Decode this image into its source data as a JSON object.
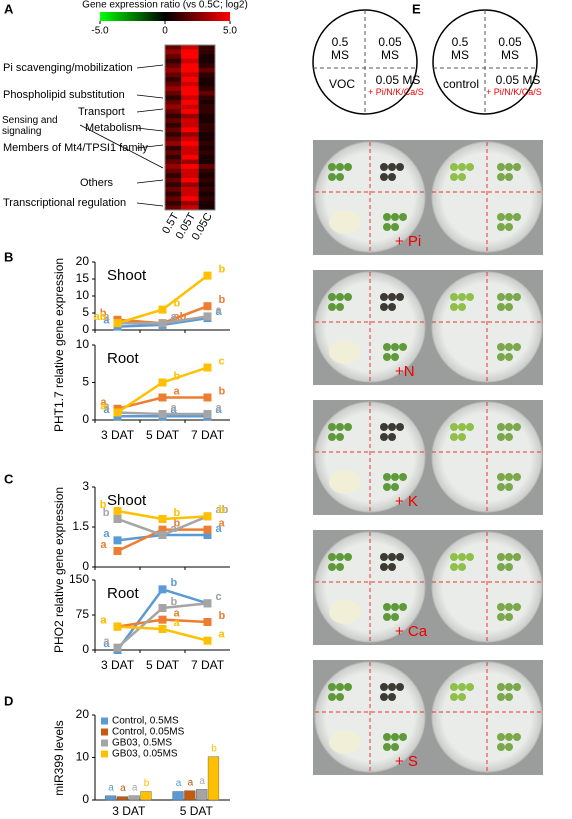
{
  "panel_labels": [
    "A",
    "B",
    "C",
    "D",
    "E"
  ],
  "chart_data": [
    {
      "type": "heatmap",
      "title": "Gene expression ratio (vs 0.5C; log2)",
      "clim": [
        -5,
        5
      ],
      "cticks": [
        {
          "value": -5,
          "label": "-5.0"
        },
        0,
        {
          "value": 5,
          "label": "5.0"
        }
      ],
      "categories": [
        "0.5T",
        "0.05T",
        "0.05C"
      ],
      "row_groups": [
        "Pi scavenging/mobilization",
        "Phospholipid substitution",
        "Transport",
        "Metabolism",
        "Members of Mt4/TPSI1 family",
        "Sensing and signaling",
        "Others",
        "Transcriptional regulation"
      ],
      "values": [
        [
          2,
          4,
          1
        ],
        [
          3,
          5,
          1
        ],
        [
          2,
          5,
          0.5
        ],
        [
          1,
          4,
          0.5
        ],
        [
          2,
          5,
          1
        ],
        [
          3,
          5,
          2
        ],
        [
          2,
          4,
          1
        ],
        [
          1,
          5,
          0.5
        ],
        [
          2,
          4,
          0.5
        ],
        [
          3,
          5,
          1
        ],
        [
          2,
          5,
          2
        ],
        [
          1,
          4,
          1
        ],
        [
          2,
          5,
          0.5
        ],
        [
          3,
          4,
          1
        ],
        [
          2,
          5,
          1
        ],
        [
          1,
          3,
          0.5
        ],
        [
          2,
          4,
          0.5
        ],
        [
          1,
          4,
          1
        ],
        [
          2,
          5,
          1
        ],
        [
          1,
          3,
          0.5
        ],
        [
          2,
          4,
          0.5
        ],
        [
          3,
          5,
          1
        ],
        [
          1,
          4,
          0.5
        ],
        [
          2,
          4,
          1
        ],
        [
          1,
          5,
          0.5
        ],
        [
          2,
          3,
          0.5
        ],
        [
          3,
          5,
          2
        ],
        [
          2,
          4,
          1
        ],
        [
          1,
          4,
          0.5
        ],
        [
          2,
          5,
          1
        ],
        [
          1,
          3,
          0.5
        ],
        [
          2,
          4,
          1
        ],
        [
          1,
          4,
          0.5
        ],
        [
          2,
          5,
          1
        ],
        [
          1,
          3,
          0.5
        ],
        [
          2,
          4,
          0.5
        ]
      ]
    },
    {
      "type": "line",
      "title": "Shoot",
      "ylabel": "PHT1.7 relative gene expression",
      "ylim": [
        0,
        20
      ],
      "yticks": [
        0,
        5,
        10,
        15,
        20
      ],
      "series": [
        {
          "color": "#5b9bd5",
          "values": [
            1,
            1.5,
            3.5
          ],
          "point_labels": [
            "a",
            "a",
            "a"
          ]
        },
        {
          "color": "#ed7d31",
          "values": [
            3,
            2,
            7
          ],
          "point_labels": [
            "b",
            "ab",
            "b"
          ]
        },
        {
          "color": "#a5a5a5",
          "values": [
            2,
            2,
            4
          ],
          "point_labels": [
            "a",
            "a",
            "a"
          ]
        },
        {
          "color": "#ffc000",
          "values": [
            2,
            6,
            16
          ],
          "point_labels": [
            "ab",
            "b",
            "b"
          ]
        }
      ]
    },
    {
      "type": "line",
      "title": "Root",
      "categories": [
        "3 DAT",
        "5 DAT",
        "7 DAT"
      ],
      "ylim": [
        0,
        10
      ],
      "yticks": [
        0,
        5,
        10
      ],
      "series": [
        {
          "color": "#5b9bd5",
          "values": [
            0.5,
            0.5,
            0.5
          ],
          "point_labels": [
            "a",
            "a",
            "a"
          ]
        },
        {
          "color": "#ed7d31",
          "values": [
            1.5,
            3,
            3
          ],
          "point_labels": [
            "a",
            "a",
            "b"
          ]
        },
        {
          "color": "#a5a5a5",
          "values": [
            1,
            0.8,
            0.8
          ],
          "point_labels": [
            "a",
            "a",
            "a"
          ]
        },
        {
          "color": "#ffc000",
          "values": [
            1,
            5,
            7
          ],
          "point_labels": [
            "a",
            "b",
            "c"
          ]
        }
      ]
    },
    {
      "type": "line",
      "title": "Shoot",
      "ylabel": "PHO2 relative gene expression",
      "ylim": [
        0,
        3
      ],
      "yticks": [
        0,
        1.5,
        3
      ],
      "series": [
        {
          "color": "#5b9bd5",
          "values": [
            1.0,
            1.2,
            1.2
          ],
          "point_labels": [
            "a",
            "a",
            "a"
          ]
        },
        {
          "color": "#ed7d31",
          "values": [
            0.6,
            1.4,
            1.4
          ],
          "point_labels": [
            "a",
            "b",
            "a"
          ]
        },
        {
          "color": "#a5a5a5",
          "values": [
            1.8,
            1.2,
            1.9
          ],
          "point_labels": [
            "b",
            "a",
            "ab"
          ]
        },
        {
          "color": "#ffc000",
          "values": [
            2.1,
            1.8,
            1.9
          ],
          "point_labels": [
            "b",
            "b",
            "b"
          ]
        }
      ]
    },
    {
      "type": "line",
      "title": "Root",
      "categories": [
        "3 DAT",
        "5 DAT",
        "7 DAT"
      ],
      "ylim": [
        0,
        150
      ],
      "yticks": [
        0,
        75,
        150
      ],
      "series": [
        {
          "color": "#5b9bd5",
          "values": [
            0,
            130,
            100
          ],
          "point_labels": [
            "a",
            "b",
            "c"
          ]
        },
        {
          "color": "#ed7d31",
          "values": [
            50,
            65,
            60
          ],
          "point_labels": [
            "a",
            "a",
            "b"
          ]
        },
        {
          "color": "#a5a5a5",
          "values": [
            5,
            90,
            100
          ],
          "point_labels": [
            "a",
            "b",
            "c"
          ]
        },
        {
          "color": "#ffc000",
          "values": [
            50,
            45,
            20
          ],
          "point_labels": [
            "a",
            "a",
            "a"
          ]
        }
      ]
    },
    {
      "type": "bar",
      "ylabel": "miR399 levels",
      "categories": [
        "3 DAT",
        "5 DAT"
      ],
      "ylim": [
        0,
        20
      ],
      "yticks": [
        0,
        10,
        20
      ],
      "legend": "upper left",
      "series": [
        {
          "name": "Control,  0.5MS",
          "color": "#5b9bd5",
          "values": [
            1,
            2
          ],
          "point_labels": [
            "a",
            "a"
          ]
        },
        {
          "name": "Control,  0.05MS",
          "color": "#c55a11",
          "values": [
            0.8,
            2.2
          ],
          "point_labels": [
            "a",
            "a"
          ]
        },
        {
          "name": "GB03, 0.5MS",
          "color": "#a5a5a5",
          "values": [
            1,
            2.5
          ],
          "point_labels": [
            "a",
            "a"
          ]
        },
        {
          "name": "GB03, 0.05MS",
          "color": "#ffc000",
          "values": [
            2,
            10.2
          ],
          "point_labels": [
            "b",
            "b"
          ]
        }
      ]
    }
  ],
  "diagram": {
    "left": {
      "top_left": "0.5 MS",
      "top_right": "0.05 MS",
      "bottom_left": "VOC",
      "bottom_right": "0.05 MS",
      "addition": "+ Pi/N/K/Ca/S"
    },
    "right": {
      "top_left": "0.5 MS",
      "top_right": "0.05 MS",
      "bottom_left": "control",
      "bottom_right": "0.05 MS",
      "addition": "+ Pi/N/K/Ca/S"
    }
  },
  "plates": [
    "+ Pi",
    "+N",
    "+ K",
    "+ Ca",
    "+ S"
  ]
}
